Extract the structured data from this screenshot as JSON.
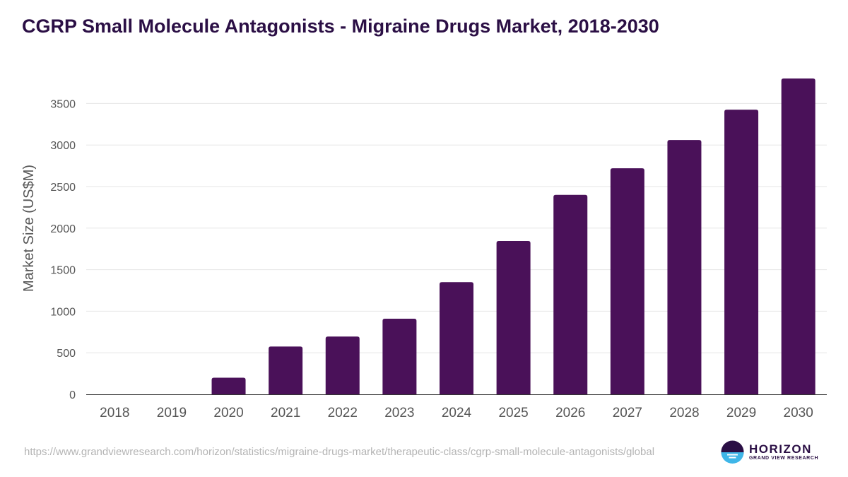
{
  "title": "CGRP Small Molecule Antagonists - Migraine Drugs Market, 2018-2030",
  "source_url": "https://www.grandviewresearch.com/horizon/statistics/migraine-drugs-market/therapeutic-class/cgrp-small-molecule-antagonists/global",
  "logo": {
    "word": "HORIZON",
    "sub": "GRAND VIEW RESEARCH",
    "icon": "horizon-logo-icon"
  },
  "colors": {
    "bar": "#4a1159",
    "title": "#2b0f45",
    "axis_text": "#555555",
    "grid": "#e6e6e6"
  },
  "chart_data": {
    "type": "bar",
    "title": "CGRP Small Molecule Antagonists - Migraine Drugs Market, 2018-2030",
    "xlabel": "",
    "ylabel": "Market Size (US$M)",
    "categories": [
      "2018",
      "2019",
      "2020",
      "2021",
      "2022",
      "2023",
      "2024",
      "2025",
      "2026",
      "2027",
      "2028",
      "2029",
      "2030"
    ],
    "values": [
      0,
      0,
      200,
      575,
      695,
      910,
      1350,
      1845,
      2400,
      2720,
      3060,
      3425,
      3800
    ],
    "ylim": [
      0,
      3800
    ],
    "yticks": [
      0,
      500,
      1000,
      1500,
      2000,
      2500,
      3000,
      3500
    ],
    "grid": true,
    "legend": "none"
  }
}
